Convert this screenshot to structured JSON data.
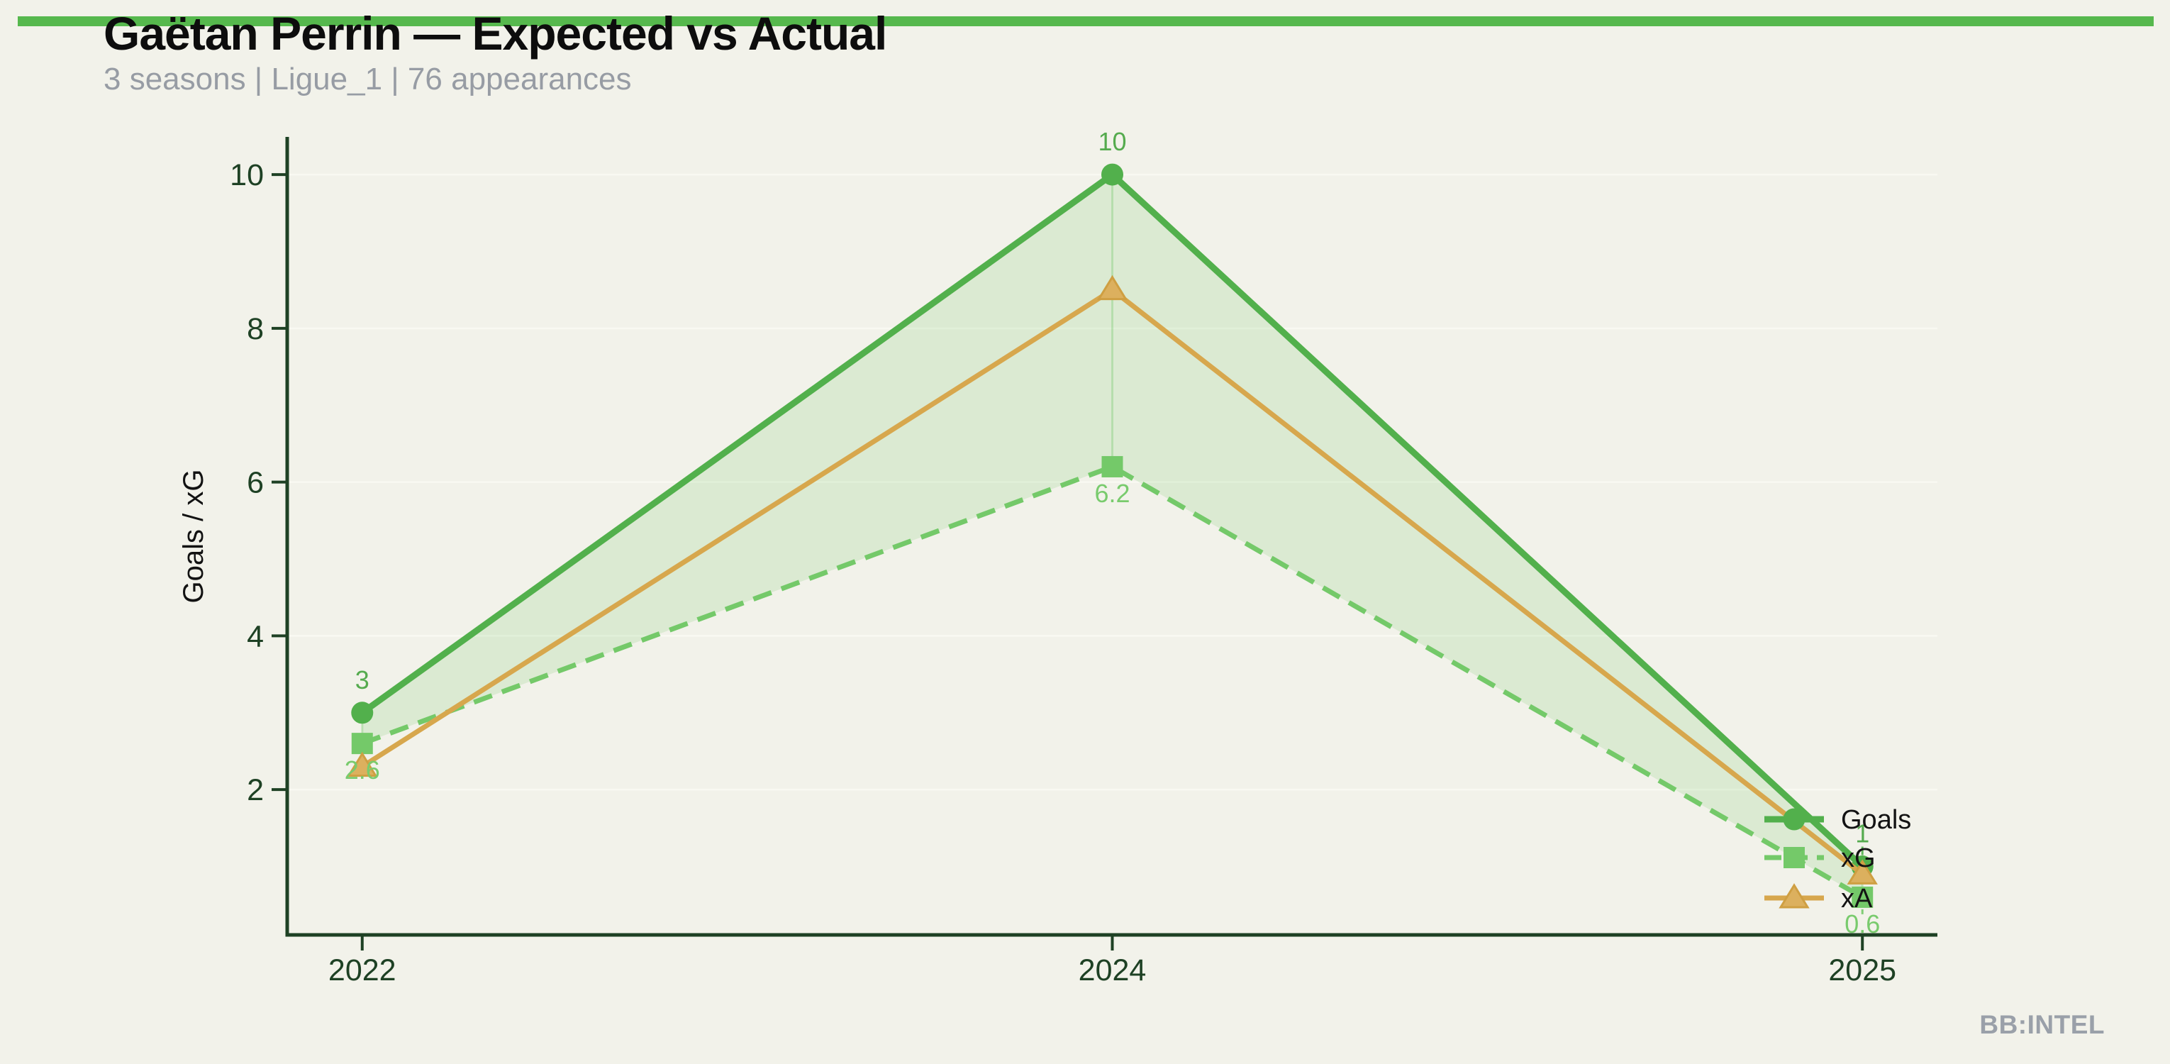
{
  "page": {
    "background": "#f2f2ea",
    "accent_bar_color": "#56b84d",
    "watermark": "BB:INTEL"
  },
  "header": {
    "title": "Gaëtan Perrin — Expected vs Actual",
    "subtitle": "3 seasons | Ligue_1 | 76 appearances"
  },
  "chart_data": {
    "type": "line",
    "title": "Gaëtan Perrin — Expected vs Actual",
    "categories": [
      "2022",
      "2024",
      "2025"
    ],
    "ylabel": "Goals / xG",
    "yticks": [
      2,
      4,
      6,
      8,
      10
    ],
    "ylim": [
      0.11,
      10.49
    ],
    "x_margin": 0.1,
    "grid": "horizontal-faint",
    "legend_position": "inline-right",
    "axis_color": "#1e4124",
    "gridline_color": "#fafaf3",
    "legend_text_color": "#131313",
    "series": [
      {
        "name": "Goals",
        "values": [
          3,
          10,
          1
        ],
        "color": "#52b04c",
        "line_style": "solid",
        "marker": "circle",
        "point_labels": [
          "3",
          "10",
          "1"
        ],
        "label_color": "#55ab4e",
        "label_side": "above"
      },
      {
        "name": "xG",
        "values": [
          2.6,
          6.2,
          0.6
        ],
        "color": "#74c969",
        "line_style": "dashed",
        "marker": "square",
        "point_labels": [
          "2.6",
          "6.2",
          "0.6"
        ],
        "label_color": "#79cb6d",
        "label_side": "below"
      },
      {
        "name": "xA",
        "values": [
          2.3,
          8.5,
          0.9
        ],
        "color": "#d7a74d",
        "line_style": "solid",
        "marker": "triangle",
        "point_labels": null,
        "label_side": null
      }
    ],
    "fill_between": {
      "upper": "Goals",
      "lower": "xG",
      "color": "#74c969",
      "opacity": 0.18
    }
  }
}
